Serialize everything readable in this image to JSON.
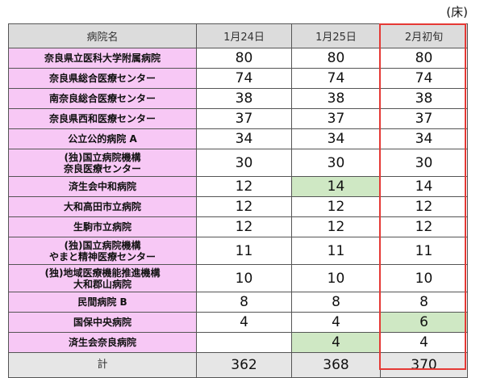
{
  "unit_label": "(床)",
  "table": {
    "headers": [
      "病院名",
      "1月24日",
      "1月25日",
      "2月初旬"
    ],
    "rows": [
      {
        "name": "奈良県立医科大学附属病院",
        "v1": "80",
        "v2": "80",
        "v3": "80"
      },
      {
        "name": "奈良県総合医療センター",
        "v1": "74",
        "v2": "74",
        "v3": "74"
      },
      {
        "name": "南奈良総合医療センター",
        "v1": "38",
        "v2": "38",
        "v3": "38"
      },
      {
        "name": "奈良県西和医療センター",
        "v1": "37",
        "v2": "37",
        "v3": "37"
      },
      {
        "name": "公立公的病院 A",
        "v1": "34",
        "v2": "34",
        "v3": "34"
      },
      {
        "name_line1": "(独)国立病院機構",
        "name_line2": "奈良医療センター",
        "v1": "30",
        "v2": "30",
        "v3": "30"
      },
      {
        "name": "済生会中和病院",
        "v1": "12",
        "v2": "14",
        "v3": "14"
      },
      {
        "name": "大和高田市立病院",
        "v1": "12",
        "v2": "12",
        "v3": "12"
      },
      {
        "name": "生駒市立病院",
        "v1": "12",
        "v2": "12",
        "v3": "12"
      },
      {
        "name_line1": "(独)国立病院機構",
        "name_line2": "やまと精神医療センター",
        "v1": "11",
        "v2": "11",
        "v3": "11"
      },
      {
        "name_line1": "(独)地域医療機能推進機構",
        "name_line2": "大和郡山病院",
        "v1": "10",
        "v2": "10",
        "v3": "10"
      },
      {
        "name": "民間病院 B",
        "v1": "8",
        "v2": "8",
        "v3": "8"
      },
      {
        "name": "国保中央病院",
        "v1": "4",
        "v2": "4",
        "v3": "6"
      },
      {
        "name": "済生会奈良病院",
        "v1": "",
        "v2": "4",
        "v3": "4"
      }
    ],
    "total": {
      "label": "計",
      "v1": "362",
      "v2": "368",
      "v3": "370"
    }
  },
  "colors": {
    "name_bg": "#f7c8f5",
    "highlight": "#cfe8c4",
    "header_bg": "#dcdcdc",
    "red_box": "#e53935"
  }
}
